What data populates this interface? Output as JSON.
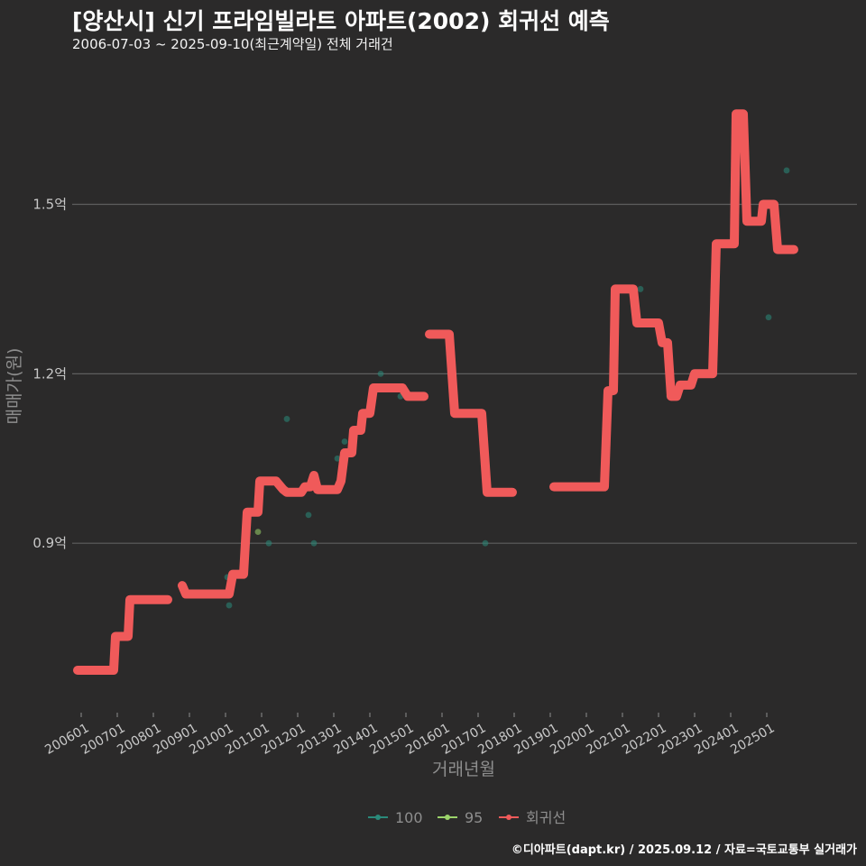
{
  "chart_data": {
    "type": "line",
    "title": "[양산시] 신기 프라임빌라트 아파트(2002) 회귀선 예측",
    "subtitle": "2006-07-03 ~ 2025-09-10(최근계약일) 전체 거래건",
    "xlabel": "거래년월",
    "ylabel": "매매가(원)",
    "y_unit": "억",
    "ylim": [
      0.6,
      1.75
    ],
    "yticks": [
      0.9,
      1.2,
      1.5
    ],
    "ytick_labels": [
      "0.9억",
      "1.2억",
      "1.5억"
    ],
    "xlim": [
      2005.75,
      2027.5
    ],
    "xticks": [
      2006,
      2007,
      2008,
      2009,
      2010,
      2011,
      2012,
      2013,
      2014,
      2015,
      2016,
      2017,
      2018,
      2019,
      2020,
      2021,
      2022,
      2023,
      2024,
      2025
    ],
    "xtick_labels": [
      "200601",
      "200701",
      "200801",
      "200901",
      "201001",
      "201101",
      "201201",
      "201301",
      "201401",
      "201501",
      "201601",
      "201701",
      "201801",
      "201901",
      "202001",
      "202101",
      "202201",
      "202301",
      "202401",
      "202501"
    ],
    "legend": [
      "100",
      "95",
      "회귀선"
    ],
    "series": [
      {
        "name": "회귀선",
        "color": "#f05a5a",
        "segments": [
          [
            [
              2005.9,
              0.675
            ],
            [
              2006.9,
              0.675
            ],
            [
              2006.95,
              0.735
            ],
            [
              2007.3,
              0.735
            ],
            [
              2007.35,
              0.8
            ],
            [
              2008.4,
              0.8
            ]
          ],
          [
            [
              2008.8,
              0.825
            ],
            [
              2008.9,
              0.81
            ],
            [
              2010.1,
              0.81
            ],
            [
              2010.2,
              0.845
            ],
            [
              2010.5,
              0.845
            ],
            [
              2010.6,
              0.955
            ],
            [
              2010.9,
              0.955
            ],
            [
              2010.95,
              1.01
            ],
            [
              2011.4,
              1.01
            ],
            [
              2011.6,
              0.995
            ],
            [
              2011.7,
              0.99
            ],
            [
              2012.1,
              0.99
            ],
            [
              2012.2,
              1.0
            ],
            [
              2012.35,
              1.0
            ],
            [
              2012.45,
              1.02
            ],
            [
              2012.55,
              0.995
            ],
            [
              2013.1,
              0.995
            ],
            [
              2013.2,
              1.01
            ],
            [
              2013.3,
              1.06
            ],
            [
              2013.5,
              1.06
            ],
            [
              2013.55,
              1.1
            ],
            [
              2013.75,
              1.1
            ],
            [
              2013.8,
              1.13
            ],
            [
              2014.0,
              1.13
            ],
            [
              2014.1,
              1.175
            ],
            [
              2014.9,
              1.175
            ],
            [
              2015.05,
              1.16
            ],
            [
              2015.5,
              1.16
            ]
          ],
          [
            [
              2015.65,
              1.27
            ],
            [
              2016.2,
              1.27
            ],
            [
              2016.35,
              1.13
            ],
            [
              2017.1,
              1.13
            ],
            [
              2017.25,
              0.99
            ],
            [
              2017.95,
              0.99
            ]
          ],
          [
            [
              2019.1,
              1.0
            ],
            [
              2020.5,
              1.0
            ],
            [
              2020.6,
              1.17
            ],
            [
              2020.75,
              1.17
            ],
            [
              2020.8,
              1.35
            ],
            [
              2021.3,
              1.35
            ],
            [
              2021.4,
              1.29
            ],
            [
              2022.0,
              1.29
            ],
            [
              2022.1,
              1.255
            ],
            [
              2022.25,
              1.255
            ],
            [
              2022.35,
              1.16
            ],
            [
              2022.5,
              1.16
            ],
            [
              2022.6,
              1.18
            ],
            [
              2022.9,
              1.18
            ],
            [
              2023.0,
              1.2
            ],
            [
              2023.5,
              1.2
            ],
            [
              2023.6,
              1.43
            ],
            [
              2024.1,
              1.43
            ],
            [
              2024.15,
              1.66
            ],
            [
              2024.35,
              1.66
            ],
            [
              2024.45,
              1.47
            ],
            [
              2024.85,
              1.47
            ],
            [
              2024.9,
              1.5
            ],
            [
              2025.2,
              1.5
            ],
            [
              2025.3,
              1.42
            ],
            [
              2025.75,
              1.42
            ]
          ]
        ]
      },
      {
        "name": "100",
        "color": "#2a8a7a",
        "points": [
          [
            2010.05,
            0.84
          ],
          [
            2010.1,
            0.79
          ],
          [
            2011.2,
            0.9
          ],
          [
            2011.7,
            1.12
          ],
          [
            2012.3,
            0.95
          ],
          [
            2012.45,
            0.9
          ],
          [
            2013.1,
            1.05
          ],
          [
            2013.3,
            1.08
          ],
          [
            2014.3,
            1.2
          ],
          [
            2014.85,
            1.16
          ],
          [
            2017.2,
            0.9
          ],
          [
            2021.5,
            1.35
          ],
          [
            2022.3,
            1.16
          ],
          [
            2025.05,
            1.3
          ],
          [
            2025.55,
            1.56
          ]
        ]
      },
      {
        "name": "95",
        "color": "#9bd36a",
        "points": [
          [
            2010.9,
            0.92
          ]
        ]
      }
    ]
  },
  "footer": {
    "credit": "©디아파트(dapt.kr) / 2025.09.12 / 자료=국토교통부 실거래가"
  }
}
